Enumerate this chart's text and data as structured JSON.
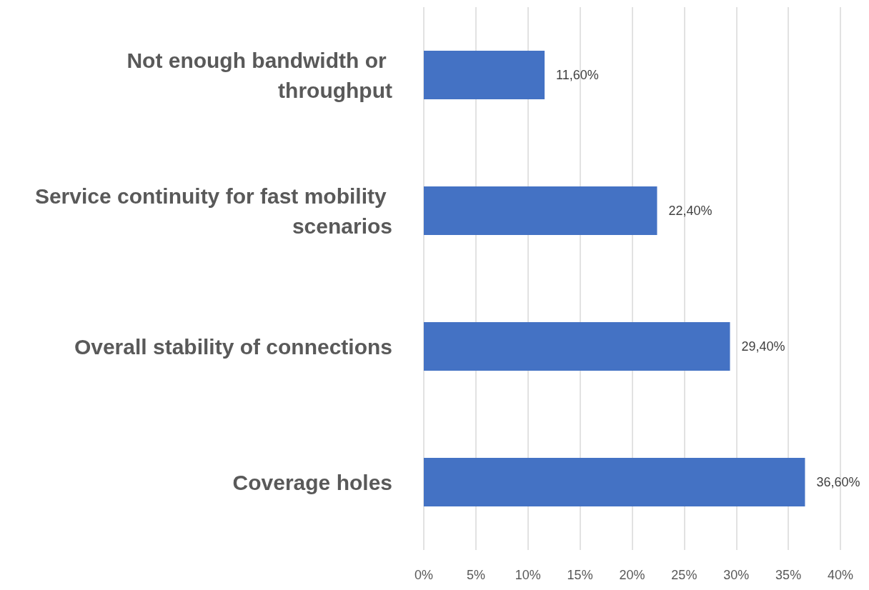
{
  "chart_data": {
    "type": "bar",
    "orientation": "horizontal",
    "categories": [
      "Not enough bandwidth or throughput",
      "Service continuity for fast mobility scenarios",
      "Overall stability of connections",
      "Coverage holes"
    ],
    "values": [
      11.6,
      22.4,
      29.4,
      36.6
    ],
    "value_labels": [
      "11,60%",
      "22,40%",
      "29,40%",
      "36,60%"
    ],
    "color": "#4472c4",
    "xlim": [
      0,
      40
    ],
    "xticks": [
      {
        "value": 0,
        "label": "0%"
      },
      {
        "value": 5,
        "label": "5%"
      },
      {
        "value": 10,
        "label": "10%"
      },
      {
        "value": 15,
        "label": "15%"
      },
      {
        "value": 20,
        "label": "20%"
      },
      {
        "value": 25,
        "label": "25%"
      },
      {
        "value": 30,
        "label": "30%"
      },
      {
        "value": 35,
        "label": "35%"
      },
      {
        "value": 40,
        "label": "40%"
      }
    ],
    "grid": "x"
  }
}
